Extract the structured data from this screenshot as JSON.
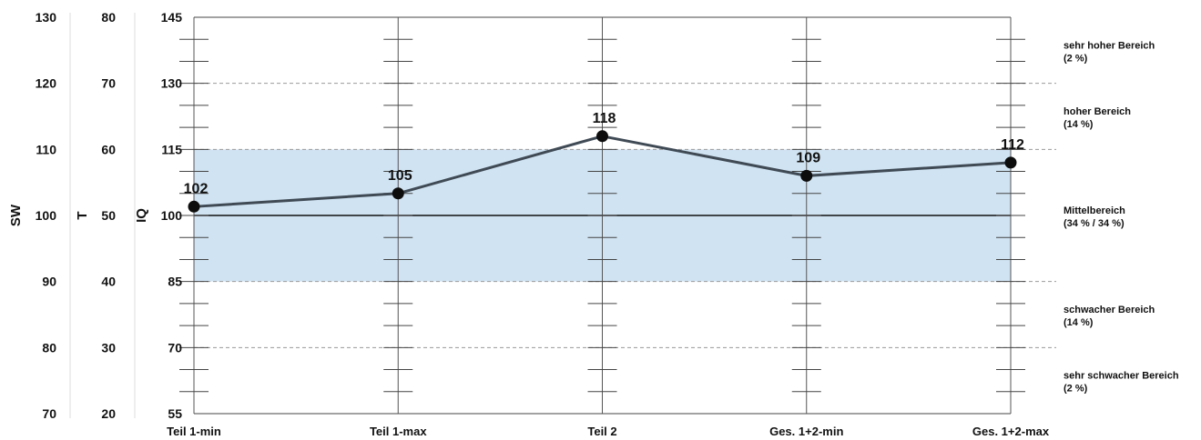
{
  "chart_data": {
    "type": "line",
    "categories": [
      "Teil 1-min",
      "Teil 1-max",
      "Teil 2",
      "Ges. 1+2-min",
      "Ges. 1+2-max"
    ],
    "series": [
      {
        "values": [
          102,
          105,
          118,
          109,
          112
        ]
      }
    ],
    "y_axes": [
      {
        "title": "IQ",
        "range": [
          55,
          145
        ],
        "ticks": [
          145,
          130,
          115,
          100,
          85,
          70,
          55
        ]
      },
      {
        "title": "T",
        "range": [
          20,
          80
        ],
        "ticks": [
          80,
          70,
          60,
          50,
          40,
          30,
          20
        ]
      },
      {
        "title": "SW",
        "range": [
          70,
          130
        ],
        "ticks": [
          130,
          120,
          110,
          100,
          90,
          80,
          70
        ]
      }
    ],
    "bands": [
      {
        "label": "sehr hoher Bereich",
        "share": "(2 %)",
        "from": 130,
        "to": 145
      },
      {
        "label": "hoher Bereich",
        "share": "(14 %)",
        "from": 115,
        "to": 130
      },
      {
        "label": "Mittelbereich",
        "share": "(34 % / 34 %)",
        "from": 85,
        "to": 115
      },
      {
        "label": "schwacher Bereich",
        "share": "(14 %)",
        "from": 70,
        "to": 85
      },
      {
        "label": "sehr schwacher Bereich",
        "share": "(2 %)",
        "from": 55,
        "to": 70
      }
    ],
    "shaded_range": [
      85,
      115
    ],
    "reference_line": 100,
    "dashed_lines": [
      130,
      115,
      85,
      70
    ],
    "colors": {
      "band": "#d0e3f2",
      "line": "#3f4a55",
      "point": "#0d0d0d"
    }
  }
}
